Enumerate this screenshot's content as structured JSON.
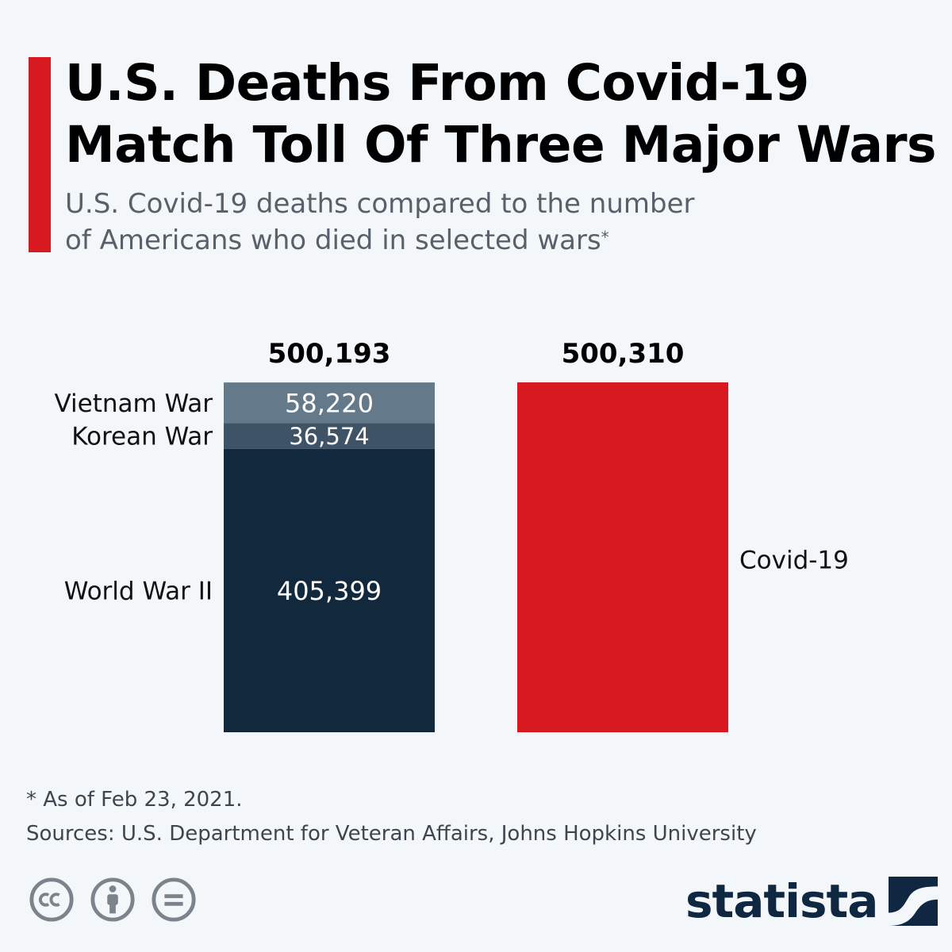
{
  "header": {
    "title_line1": "U.S. Deaths From Covid-19",
    "title_line2": "Match Toll Of Three Major Wars",
    "subtitle_line1": "U.S. Covid-19 deaths compared to the number",
    "subtitle_line2": "of Americans who died in selected wars",
    "subtitle_marker": "*",
    "accent_color": "#d71920"
  },
  "chart_data": {
    "type": "bar",
    "stacked": true,
    "bars": [
      {
        "total_label": "500,193",
        "total": 500193,
        "segments": [
          {
            "name": "World War II",
            "value": 405399,
            "value_label": "405,399",
            "color": "#12283d"
          },
          {
            "name": "Korean War",
            "value": 36574,
            "value_label": "36,574",
            "color": "#3e5366"
          },
          {
            "name": "Vietnam War",
            "value": 58220,
            "value_label": "58,220",
            "color": "#647a8b"
          }
        ]
      },
      {
        "total_label": "500,310",
        "total": 500310,
        "segments": [
          {
            "name": "Covid-19",
            "value": 500310,
            "value_label": "",
            "color": "#d71920"
          }
        ]
      }
    ],
    "ylim": [
      0,
      500310
    ],
    "grid": false,
    "legend": "direct-labels"
  },
  "footer": {
    "note": "* As of Feb 23, 2021.",
    "sources": "Sources: U.S. Department for Veteran Affairs, Johns Hopkins University",
    "brand": "statista",
    "license_icons": [
      "creative-commons-icon",
      "attribution-icon",
      "no-derivatives-icon"
    ]
  }
}
